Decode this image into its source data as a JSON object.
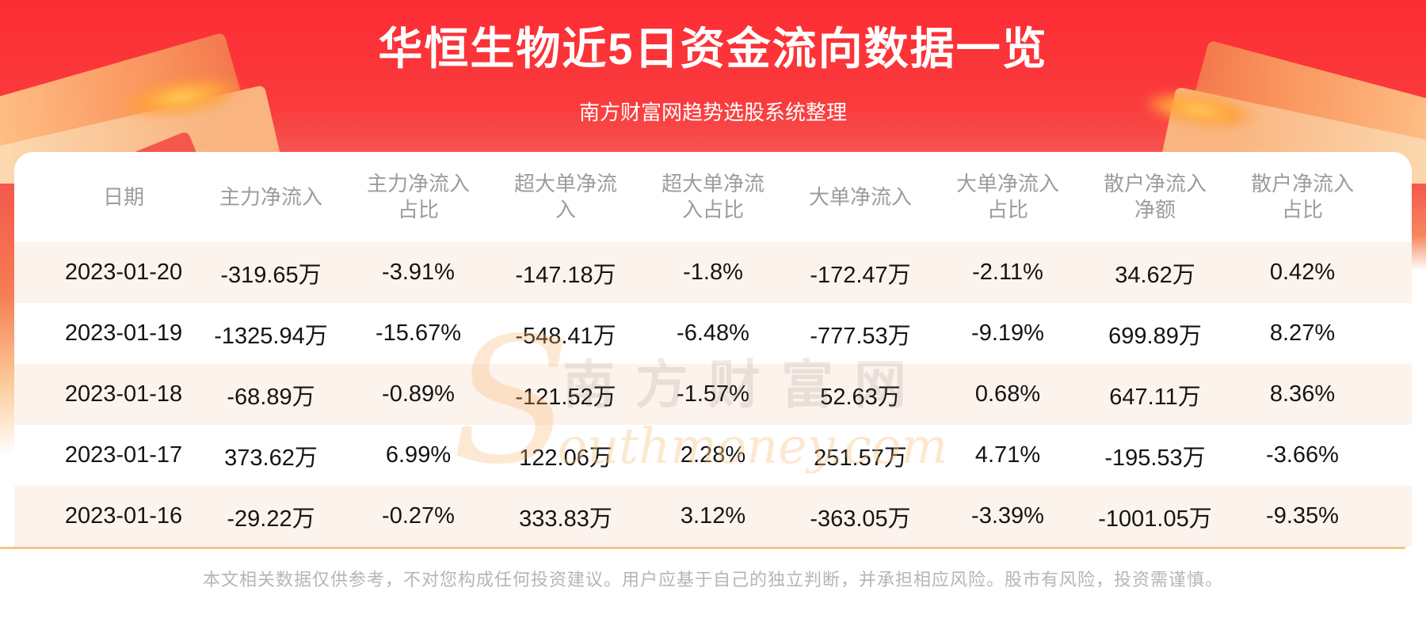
{
  "banner": {
    "title": "华恒生物近5日资金流向数据一览",
    "subtitle": "南方财富网趋势选股系统整理"
  },
  "chart_data": {
    "type": "table",
    "title": "华恒生物近5日资金流向数据一览",
    "columns": [
      "日期",
      "主力净流入",
      "主力净流入\n占比",
      "超大单净流\n入",
      "超大单净流\n入占比",
      "大单净流入",
      "大单净流入\n占比",
      "散户净流入\n净额",
      "散户净流入\n占比"
    ],
    "rows": [
      [
        "2023-01-20",
        "-319.65万",
        "-3.91%",
        "-147.18万",
        "-1.8%",
        "-172.47万",
        "-2.11%",
        "34.62万",
        "0.42%"
      ],
      [
        "2023-01-19",
        "-1325.94万",
        "-15.67%",
        "-548.41万",
        "-6.48%",
        "-777.53万",
        "-9.19%",
        "699.89万",
        "8.27%"
      ],
      [
        "2023-01-18",
        "-68.89万",
        "-0.89%",
        "-121.52万",
        "-1.57%",
        "52.63万",
        "0.68%",
        "647.11万",
        "8.36%"
      ],
      [
        "2023-01-17",
        "373.62万",
        "6.99%",
        "122.06万",
        "2.28%",
        "251.57万",
        "4.71%",
        "-195.53万",
        "-3.66%"
      ],
      [
        "2023-01-16",
        "-29.22万",
        "-0.27%",
        "333.83万",
        "3.12%",
        "-363.05万",
        "-3.39%",
        "-1001.05万",
        "-9.35%"
      ]
    ]
  },
  "watermark": {
    "line1": "南方财富网",
    "line2": "outhmoney.com",
    "swoosh": "S"
  },
  "footer": {
    "disclaimer": "本文相关数据仅供参考，不对您构成任何投资建议。用户应基于自己的独立判断，并承担相应风险。股市有风险，投资需谨慎。"
  },
  "colors": {
    "banner_red": "#fc2d34",
    "banner_red_bottom": "#f2645b",
    "decor_orange": "#f9935c",
    "title_text": "#ffffff",
    "header_text": "#9c9c9c",
    "body_text": "#141414",
    "row_alt_bg": "#fdf3ed",
    "divider": "#f3c58d",
    "disclaimer_text": "#b5b5b5",
    "watermark_orange": "#f7c687"
  }
}
